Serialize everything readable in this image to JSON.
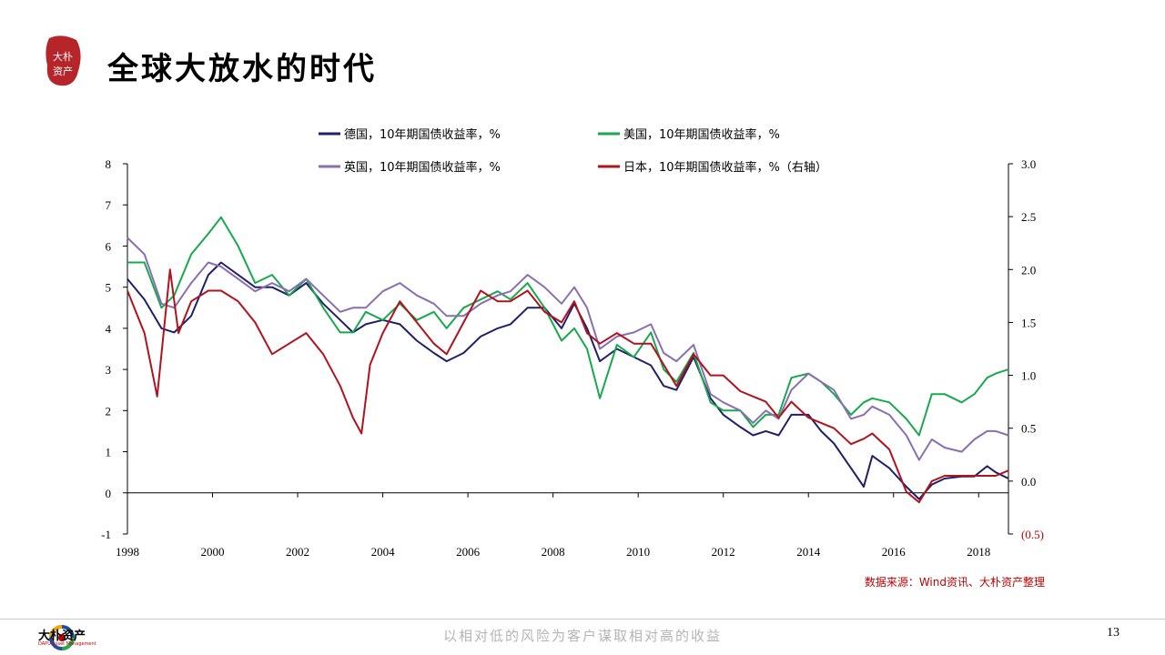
{
  "header": {
    "title": "全球大放水的时代",
    "seal_text": "大朴资产"
  },
  "chart_data": {
    "type": "line",
    "x_ticks": [
      "1998",
      "2000",
      "2002",
      "2004",
      "2006",
      "2008",
      "2010",
      "2012",
      "2014",
      "2016",
      "2018"
    ],
    "xlim": [
      1998,
      2018.7
    ],
    "ylim_left": [
      -1,
      8
    ],
    "yticks_left": [
      "-1",
      "0",
      "1",
      "2",
      "3",
      "4",
      "5",
      "6",
      "7",
      "8"
    ],
    "ylim_right": [
      -0.5,
      3.0
    ],
    "yticks_right": [
      "(0.5)",
      "0.0",
      "0.5",
      "1.0",
      "1.5",
      "2.0",
      "2.5",
      "3.0"
    ],
    "legend_position": "top",
    "grid": false,
    "series": [
      {
        "name": "德国，10年期国债收益率，%",
        "color": "#1f1f6b",
        "axis": "left",
        "x": [
          1998.0,
          1998.4,
          1998.8,
          1999.1,
          1999.5,
          1999.9,
          2000.2,
          2000.6,
          2001.0,
          2001.4,
          2001.8,
          2002.2,
          2002.6,
          2003.0,
          2003.3,
          2003.6,
          2004.0,
          2004.4,
          2004.8,
          2005.2,
          2005.5,
          2005.9,
          2006.3,
          2006.7,
          2007.0,
          2007.4,
          2007.8,
          2008.2,
          2008.5,
          2008.8,
          2009.1,
          2009.5,
          2009.9,
          2010.3,
          2010.6,
          2010.9,
          2011.3,
          2011.7,
          2012.0,
          2012.4,
          2012.7,
          2013.0,
          2013.3,
          2013.6,
          2014.0,
          2014.3,
          2014.6,
          2015.0,
          2015.3,
          2015.5,
          2015.9,
          2016.3,
          2016.6,
          2016.9,
          2017.2,
          2017.6,
          2017.9,
          2018.2,
          2018.4,
          2018.7
        ],
        "y": [
          5.2,
          4.7,
          4.0,
          3.9,
          4.3,
          5.3,
          5.6,
          5.3,
          5.0,
          5.0,
          4.8,
          5.1,
          4.6,
          4.2,
          3.9,
          4.1,
          4.2,
          4.1,
          3.7,
          3.4,
          3.2,
          3.4,
          3.8,
          4.0,
          4.1,
          4.5,
          4.5,
          4.0,
          4.6,
          4.0,
          3.2,
          3.5,
          3.3,
          3.1,
          2.6,
          2.5,
          3.3,
          2.3,
          1.9,
          1.6,
          1.4,
          1.5,
          1.4,
          1.9,
          1.9,
          1.5,
          1.2,
          0.6,
          0.15,
          0.9,
          0.6,
          0.15,
          -0.15,
          0.2,
          0.35,
          0.4,
          0.4,
          0.65,
          0.5,
          0.35
        ]
      },
      {
        "name": "美国，10年期国债收益率，%",
        "color": "#16a94e",
        "axis": "left",
        "x": [
          1998.0,
          1998.4,
          1998.8,
          1999.1,
          1999.5,
          1999.9,
          2000.2,
          2000.6,
          2001.0,
          2001.4,
          2001.8,
          2002.2,
          2002.6,
          2003.0,
          2003.3,
          2003.6,
          2004.0,
          2004.4,
          2004.8,
          2005.2,
          2005.5,
          2005.9,
          2006.3,
          2006.7,
          2007.0,
          2007.4,
          2007.8,
          2008.2,
          2008.5,
          2008.8,
          2009.1,
          2009.5,
          2009.9,
          2010.3,
          2010.6,
          2010.9,
          2011.3,
          2011.7,
          2012.0,
          2012.4,
          2012.7,
          2013.0,
          2013.3,
          2013.6,
          2014.0,
          2014.3,
          2014.6,
          2015.0,
          2015.3,
          2015.5,
          2015.9,
          2016.3,
          2016.6,
          2016.9,
          2017.2,
          2017.6,
          2017.9,
          2018.2,
          2018.4,
          2018.7
        ],
        "y": [
          5.6,
          5.6,
          4.5,
          4.8,
          5.8,
          6.3,
          6.7,
          6.0,
          5.1,
          5.3,
          4.8,
          5.2,
          4.5,
          3.9,
          3.9,
          4.4,
          4.2,
          4.6,
          4.2,
          4.4,
          4.0,
          4.5,
          4.7,
          4.9,
          4.7,
          5.1,
          4.5,
          3.7,
          4.0,
          3.5,
          2.3,
          3.6,
          3.3,
          3.9,
          3.0,
          2.7,
          3.4,
          2.2,
          2.0,
          2.0,
          1.6,
          1.9,
          1.9,
          2.8,
          2.9,
          2.7,
          2.4,
          1.9,
          2.2,
          2.3,
          2.2,
          1.8,
          1.4,
          2.4,
          2.4,
          2.2,
          2.4,
          2.8,
          2.9,
          3.0
        ]
      },
      {
        "name": "英国，10年期国债收益率，%",
        "color": "#8a6fb0",
        "axis": "left",
        "x": [
          1998.0,
          1998.4,
          1998.8,
          1999.1,
          1999.5,
          1999.9,
          2000.2,
          2000.6,
          2001.0,
          2001.4,
          2001.8,
          2002.2,
          2002.6,
          2003.0,
          2003.3,
          2003.6,
          2004.0,
          2004.4,
          2004.8,
          2005.2,
          2005.5,
          2005.9,
          2006.3,
          2006.7,
          2007.0,
          2007.4,
          2007.8,
          2008.2,
          2008.5,
          2008.8,
          2009.1,
          2009.5,
          2009.9,
          2010.3,
          2010.6,
          2010.9,
          2011.3,
          2011.7,
          2012.0,
          2012.4,
          2012.7,
          2013.0,
          2013.3,
          2013.6,
          2014.0,
          2014.3,
          2014.6,
          2015.0,
          2015.3,
          2015.5,
          2015.9,
          2016.3,
          2016.6,
          2016.9,
          2017.2,
          2017.6,
          2017.9,
          2018.2,
          2018.4,
          2018.7
        ],
        "y": [
          6.2,
          5.8,
          4.6,
          4.5,
          5.1,
          5.6,
          5.5,
          5.2,
          4.9,
          5.1,
          4.9,
          5.2,
          4.8,
          4.4,
          4.5,
          4.5,
          4.9,
          5.1,
          4.8,
          4.6,
          4.3,
          4.3,
          4.6,
          4.8,
          4.9,
          5.3,
          5.0,
          4.6,
          5.0,
          4.5,
          3.5,
          3.8,
          3.9,
          4.1,
          3.4,
          3.2,
          3.6,
          2.4,
          2.2,
          2.0,
          1.7,
          2.0,
          1.8,
          2.5,
          2.9,
          2.7,
          2.5,
          1.8,
          1.9,
          2.1,
          1.9,
          1.4,
          0.8,
          1.3,
          1.1,
          1.0,
          1.3,
          1.5,
          1.5,
          1.4
        ]
      },
      {
        "name": "日本，10年期国债收益率，%（右轴）",
        "color": "#b0131d",
        "axis": "right",
        "x": [
          1998.0,
          1998.4,
          1998.7,
          1998.9,
          1999.0,
          1999.2,
          1999.5,
          1999.9,
          2000.2,
          2000.6,
          2001.0,
          2001.4,
          2001.8,
          2002.2,
          2002.6,
          2003.0,
          2003.3,
          2003.5,
          2003.7,
          2004.0,
          2004.4,
          2004.8,
          2005.2,
          2005.5,
          2005.9,
          2006.3,
          2006.7,
          2007.0,
          2007.4,
          2007.8,
          2008.2,
          2008.5,
          2008.8,
          2009.1,
          2009.5,
          2009.9,
          2010.3,
          2010.6,
          2010.9,
          2011.3,
          2011.7,
          2012.0,
          2012.4,
          2012.7,
          2013.0,
          2013.3,
          2013.6,
          2014.0,
          2014.3,
          2014.6,
          2015.0,
          2015.3,
          2015.5,
          2015.9,
          2016.3,
          2016.6,
          2016.9,
          2017.2,
          2017.6,
          2017.9,
          2018.2,
          2018.4,
          2018.7
        ],
        "y": [
          1.8,
          1.4,
          0.8,
          1.6,
          2.0,
          1.4,
          1.7,
          1.8,
          1.8,
          1.7,
          1.5,
          1.2,
          1.3,
          1.4,
          1.2,
          0.9,
          0.6,
          0.45,
          1.1,
          1.4,
          1.7,
          1.5,
          1.3,
          1.2,
          1.5,
          1.8,
          1.7,
          1.7,
          1.8,
          1.6,
          1.5,
          1.7,
          1.4,
          1.3,
          1.4,
          1.3,
          1.3,
          1.1,
          0.9,
          1.2,
          1.0,
          1.0,
          0.85,
          0.8,
          0.75,
          0.6,
          0.75,
          0.6,
          0.55,
          0.5,
          0.35,
          0.4,
          0.45,
          0.3,
          -0.1,
          -0.2,
          0.0,
          0.05,
          0.05,
          0.05,
          0.05,
          0.05,
          0.1
        ]
      }
    ]
  },
  "source": "数据来源：Wind资讯、大朴资产整理",
  "footer": {
    "brand": "大朴资产",
    "brand_sub": "DAPU Asset Management",
    "slogan": "以相对低的风险为客户谋取相对高的收益",
    "page_number": "13"
  },
  "colors": {
    "accent": "#c00000",
    "seal": "#b5252a"
  }
}
